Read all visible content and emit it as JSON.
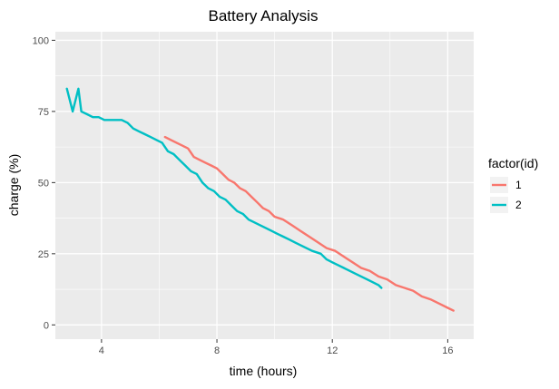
{
  "chart_data": {
    "type": "line",
    "title": "Battery Analysis",
    "xlabel": "time (hours)",
    "ylabel": "charge (%)",
    "xlim": [
      2.4,
      16.9
    ],
    "ylim": [
      -5,
      103
    ],
    "x_ticks": [
      4,
      8,
      12,
      16
    ],
    "x_tick_labels": [
      "4",
      "8",
      "12",
      "16"
    ],
    "y_ticks": [
      0,
      25,
      50,
      75,
      100
    ],
    "y_tick_labels": [
      "0",
      "25",
      "50",
      "75",
      "100"
    ],
    "grid": true,
    "panel_background": "#ebebeb",
    "grid_color": "#ffffff",
    "legend": {
      "title": "factor(id)",
      "position": "right"
    },
    "series": [
      {
        "name": "1",
        "color": "#f8766d",
        "points": [
          [
            6.2,
            66
          ],
          [
            6.4,
            65
          ],
          [
            6.6,
            64
          ],
          [
            6.8,
            63
          ],
          [
            7.0,
            62
          ],
          [
            7.2,
            59
          ],
          [
            7.4,
            58
          ],
          [
            7.6,
            57
          ],
          [
            7.8,
            56
          ],
          [
            8.0,
            55
          ],
          [
            8.2,
            53
          ],
          [
            8.4,
            51
          ],
          [
            8.6,
            50
          ],
          [
            8.8,
            48
          ],
          [
            9.0,
            47
          ],
          [
            9.2,
            45
          ],
          [
            9.4,
            43
          ],
          [
            9.6,
            41
          ],
          [
            9.8,
            40
          ],
          [
            10.0,
            38
          ],
          [
            10.3,
            37
          ],
          [
            10.6,
            35
          ],
          [
            10.9,
            33
          ],
          [
            11.2,
            31
          ],
          [
            11.5,
            29
          ],
          [
            11.8,
            27
          ],
          [
            12.1,
            26
          ],
          [
            12.4,
            24
          ],
          [
            12.7,
            22
          ],
          [
            13.0,
            20
          ],
          [
            13.3,
            19
          ],
          [
            13.6,
            17
          ],
          [
            13.9,
            16
          ],
          [
            14.2,
            14
          ],
          [
            14.5,
            13
          ],
          [
            14.8,
            12
          ],
          [
            15.1,
            10
          ],
          [
            15.4,
            9
          ],
          [
            15.6,
            8
          ],
          [
            15.8,
            7
          ],
          [
            16.0,
            6
          ],
          [
            16.2,
            5
          ]
        ]
      },
      {
        "name": "2",
        "color": "#00bfc4",
        "points": [
          [
            2.8,
            83
          ],
          [
            3.0,
            75
          ],
          [
            3.2,
            83
          ],
          [
            3.3,
            75
          ],
          [
            3.5,
            74
          ],
          [
            3.7,
            73
          ],
          [
            3.9,
            73
          ],
          [
            4.1,
            72
          ],
          [
            4.4,
            72
          ],
          [
            4.7,
            72
          ],
          [
            4.9,
            71
          ],
          [
            5.1,
            69
          ],
          [
            5.3,
            68
          ],
          [
            5.5,
            67
          ],
          [
            5.7,
            66
          ],
          [
            5.9,
            65
          ],
          [
            6.1,
            64
          ],
          [
            6.3,
            61
          ],
          [
            6.5,
            60
          ],
          [
            6.7,
            58
          ],
          [
            6.9,
            56
          ],
          [
            7.1,
            54
          ],
          [
            7.3,
            53
          ],
          [
            7.5,
            50
          ],
          [
            7.7,
            48
          ],
          [
            7.9,
            47
          ],
          [
            8.1,
            45
          ],
          [
            8.3,
            44
          ],
          [
            8.5,
            42
          ],
          [
            8.7,
            40
          ],
          [
            8.9,
            39
          ],
          [
            9.1,
            37
          ],
          [
            9.3,
            36
          ],
          [
            9.5,
            35
          ],
          [
            9.7,
            34
          ],
          [
            9.9,
            33
          ],
          [
            10.1,
            32
          ],
          [
            10.3,
            31
          ],
          [
            10.5,
            30
          ],
          [
            10.7,
            29
          ],
          [
            10.9,
            28
          ],
          [
            11.1,
            27
          ],
          [
            11.3,
            26
          ],
          [
            11.6,
            25
          ],
          [
            11.8,
            23
          ],
          [
            12.0,
            22
          ],
          [
            12.2,
            21
          ],
          [
            12.4,
            20
          ],
          [
            12.6,
            19
          ],
          [
            12.8,
            18
          ],
          [
            13.0,
            17
          ],
          [
            13.2,
            16
          ],
          [
            13.4,
            15
          ],
          [
            13.6,
            14
          ],
          [
            13.7,
            13
          ]
        ]
      }
    ]
  }
}
